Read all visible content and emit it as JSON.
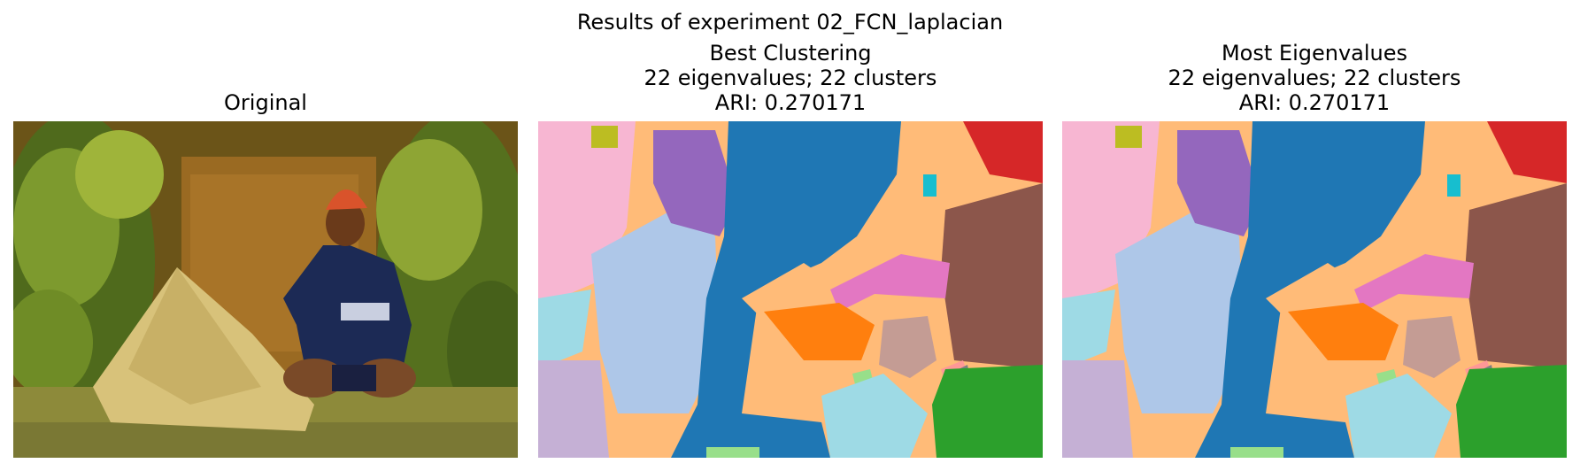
{
  "figure": {
    "suptitle": "Results of experiment 02_FCN_laplacian"
  },
  "panels": [
    {
      "title_lines": [
        "Original"
      ],
      "kind": "photo"
    },
    {
      "title_lines": [
        "Best Clustering",
        "22 eigenvalues; 22 clusters",
        "ARI: 0.270171"
      ],
      "kind": "segmentation"
    },
    {
      "title_lines": [
        "Most Eigenvalues",
        "22 eigenvalues; 22 clusters",
        "ARI: 0.270171"
      ],
      "kind": "segmentation"
    }
  ],
  "cluster_colors": {
    "background_peach": "#ffbb78",
    "blue": "#1f77b4",
    "light_blue": "#aec7e8",
    "purple": "#9467bd",
    "pink": "#e377c2",
    "light_pink": "#f7b6d2",
    "orange": "#ff7f0e",
    "red": "#d62728",
    "brown": "#8c564b",
    "tan": "#c49c94",
    "green": "#2ca02c",
    "light_green": "#98df8a",
    "cyan": "#17becf",
    "light_cyan": "#9edae5",
    "lavender": "#c5b0d5",
    "olive": "#bcbd22",
    "gray": "#7f7f7f",
    "salmon": "#ff9896"
  }
}
